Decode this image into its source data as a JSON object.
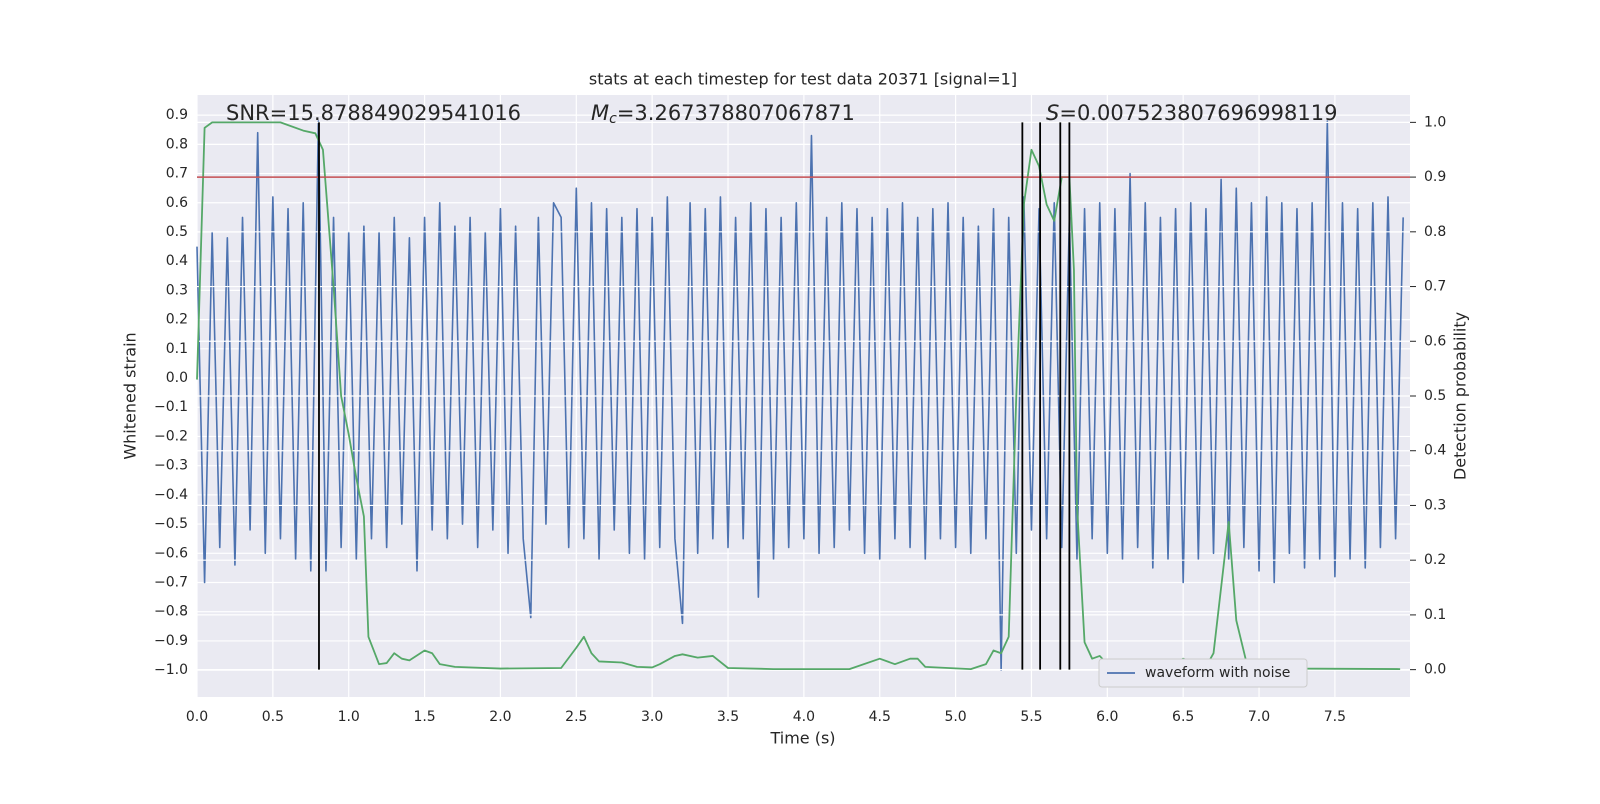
{
  "chart_data": {
    "type": "line",
    "title": "stats at each timestep for test data 20371 [signal=1]",
    "x_label": "Time (s)",
    "y_label": "Whitened strain",
    "y2_label": "Detection probability",
    "xlim": [
      0,
      7.995
    ],
    "ylim": [
      -1.092,
      0.969
    ],
    "y2lim": [
      -0.05,
      1.05
    ],
    "grid": true,
    "legend": "lower right",
    "xticks": [
      {
        "value": 0,
        "label": "0.0"
      },
      0.5,
      {
        "value": 1,
        "label": "1.0"
      },
      1.5,
      {
        "value": 2,
        "label": "2.0"
      },
      2.5,
      {
        "value": 3,
        "label": "3.0"
      },
      3.5,
      {
        "value": 4,
        "label": "4.0"
      },
      4.5,
      {
        "value": 5,
        "label": "5.0"
      },
      5.5,
      {
        "value": 6,
        "label": "6.0"
      },
      6.5,
      {
        "value": 7,
        "label": "7.0"
      },
      7.5
    ],
    "yticks": [
      {
        "value": -1,
        "label": "−1.0"
      },
      {
        "value": -0.9,
        "label": "−0.9"
      },
      {
        "value": -0.8,
        "label": "−0.8"
      },
      {
        "value": -0.7,
        "label": "−0.7"
      },
      {
        "value": -0.6,
        "label": "−0.6"
      },
      {
        "value": -0.5,
        "label": "−0.5"
      },
      {
        "value": -0.4,
        "label": "−0.4"
      },
      {
        "value": -0.3,
        "label": "−0.3"
      },
      {
        "value": -0.2,
        "label": "−0.2"
      },
      {
        "value": -0.1,
        "label": "−0.1"
      },
      {
        "value": 0,
        "label": "0.0"
      },
      0.1,
      0.2,
      0.3,
      0.4,
      0.5,
      0.6,
      0.7,
      0.8,
      0.9
    ],
    "y2ticks": [
      {
        "value": 0,
        "label": "0.0"
      },
      0.1,
      0.2,
      0.3,
      0.4,
      0.5,
      0.6,
      0.7,
      0.8,
      0.9,
      {
        "value": 1,
        "label": "1.0"
      }
    ],
    "annotations": [
      {
        "text": "SNR=15.878849029541016"
      },
      {
        "symbol": "M",
        "subscript": "c",
        "text": "=3.267378807067871"
      },
      {
        "symbol": "S",
        "text": "=0.007523807696998119"
      }
    ],
    "threshold": {
      "value": 0.9,
      "axis": "y2",
      "color": "#c44e52"
    },
    "vlines": {
      "x": [
        0.804,
        5.44,
        5.557,
        5.69,
        5.75
      ],
      "ymin": 0,
      "ymax": 1,
      "axis": "y2",
      "color": "#000000"
    },
    "series": [
      {
        "name": "waveform with noise",
        "color": "#4c72b0",
        "axis": "y",
        "x": [
          0,
          0.05,
          0.1,
          0.15,
          0.2,
          0.25,
          0.3,
          0.35,
          0.4,
          0.45,
          0.5,
          0.55,
          0.6,
          0.65,
          0.7,
          0.75,
          0.8,
          0.85,
          0.9,
          0.95,
          1,
          1.05,
          1.1,
          1.15,
          1.2,
          1.25,
          1.3,
          1.35,
          1.4,
          1.45,
          1.5,
          1.55,
          1.6,
          1.65,
          1.7,
          1.75,
          1.8,
          1.85,
          1.9,
          1.95,
          2,
          2.05,
          2.1,
          2.15,
          2.2,
          2.25,
          2.3,
          2.35,
          2.4,
          2.45,
          2.5,
          2.55,
          2.6,
          2.65,
          2.7,
          2.75,
          2.8,
          2.85,
          2.9,
          2.95,
          3,
          3.05,
          3.1,
          3.15,
          3.2,
          3.25,
          3.3,
          3.35,
          3.4,
          3.45,
          3.5,
          3.55,
          3.6,
          3.65,
          3.7,
          3.75,
          3.8,
          3.85,
          3.9,
          3.95,
          4,
          4.05,
          4.1,
          4.15,
          4.2,
          4.25,
          4.3,
          4.35,
          4.4,
          4.45,
          4.5,
          4.55,
          4.6,
          4.65,
          4.7,
          4.75,
          4.8,
          4.85,
          4.9,
          4.95,
          5,
          5.05,
          5.1,
          5.15,
          5.2,
          5.25,
          5.3,
          5.35,
          5.4,
          5.45,
          5.5,
          5.55,
          5.6,
          5.65,
          5.7,
          5.75,
          5.8,
          5.85,
          5.9,
          5.95,
          6,
          6.05,
          6.1,
          6.15,
          6.2,
          6.25,
          6.3,
          6.35,
          6.4,
          6.45,
          6.5,
          6.55,
          6.6,
          6.65,
          6.7,
          6.75,
          6.8,
          6.85,
          6.9,
          6.95,
          7,
          7.05,
          7.1,
          7.15,
          7.2,
          7.25,
          7.3,
          7.35,
          7.4,
          7.45,
          7.5,
          7.55,
          7.6,
          7.65,
          7.7,
          7.75,
          7.8,
          7.85,
          7.9,
          7.95
        ],
        "values": [
          0.45,
          -0.7,
          0.5,
          -0.58,
          0.48,
          -0.64,
          0.55,
          -0.52,
          0.84,
          -0.6,
          0.62,
          -0.55,
          0.58,
          -0.62,
          0.6,
          -0.66,
          0.88,
          -0.66,
          0.55,
          -0.58,
          0.5,
          -0.62,
          0.52,
          -0.55,
          0.5,
          -0.58,
          0.55,
          -0.5,
          0.48,
          -0.66,
          0.55,
          -0.52,
          0.6,
          -0.55,
          0.52,
          -0.5,
          0.55,
          -0.58,
          0.5,
          -0.52,
          0.58,
          -0.6,
          0.52,
          -0.55,
          -0.82,
          0.55,
          -0.5,
          0.6,
          0.55,
          -0.58,
          0.65,
          -0.55,
          0.6,
          -0.62,
          0.58,
          -0.52,
          0.55,
          -0.6,
          0.58,
          -0.62,
          0.55,
          -0.58,
          0.62,
          -0.55,
          -0.84,
          0.6,
          -0.6,
          0.58,
          -0.55,
          0.62,
          -0.58,
          0.55,
          -0.55,
          0.6,
          -0.75,
          0.58,
          -0.62,
          0.55,
          -0.58,
          0.6,
          -0.55,
          0.83,
          -0.6,
          0.55,
          -0.58,
          0.6,
          -0.52,
          0.58,
          -0.6,
          0.55,
          -0.62,
          0.58,
          -0.55,
          0.6,
          -0.58,
          0.55,
          -0.62,
          0.58,
          -0.55,
          0.6,
          -0.58,
          0.55,
          -0.6,
          0.52,
          -0.55,
          0.58,
          -1.0,
          0.55,
          -0.6,
          0.62,
          -0.52,
          0.58,
          -0.55,
          0.6,
          -0.58,
          0.55,
          -0.62,
          0.58,
          -0.55,
          0.6,
          -0.6,
          0.58,
          -0.62,
          0.7,
          -0.58,
          0.6,
          -0.65,
          0.55,
          -0.62,
          0.58,
          -0.7,
          0.6,
          -0.62,
          0.58,
          -0.6,
          0.68,
          -0.62,
          0.65,
          -0.58,
          0.6,
          -0.66,
          0.62,
          -0.7,
          0.6,
          -0.6,
          0.58,
          -0.65,
          0.6,
          -0.62,
          0.88,
          -0.68,
          0.6,
          -0.62,
          0.58,
          -0.65,
          0.6,
          -0.58,
          0.62,
          -0.55,
          0.55
        ]
      },
      {
        "color": "#55a868",
        "axis": "y2",
        "x": [
          0,
          0.05,
          0.1,
          0.3,
          0.55,
          0.7,
          0.78,
          0.83,
          0.9,
          0.95,
          1,
          1.05,
          1.1,
          1.13,
          1.2,
          1.25,
          1.3,
          1.35,
          1.4,
          1.5,
          1.55,
          1.6,
          1.7,
          2,
          2.4,
          2.5,
          2.55,
          2.6,
          2.65,
          2.8,
          2.9,
          3,
          3.05,
          3.15,
          3.2,
          3.3,
          3.4,
          3.5,
          3.8,
          4.3,
          4.5,
          4.6,
          4.7,
          4.75,
          4.8,
          5.1,
          5.2,
          5.25,
          5.3,
          5.35,
          5.4,
          5.45,
          5.5,
          5.55,
          5.6,
          5.65,
          5.7,
          5.75,
          5.78,
          5.8,
          5.85,
          5.9,
          5.95,
          6,
          6.1,
          6.4,
          6.5,
          6.6,
          6.65,
          6.7,
          6.8,
          6.85,
          6.92,
          7,
          7.05,
          7.2,
          7.93
        ],
        "values": [
          0.53,
          0.99,
          1.0,
          1.0,
          1.0,
          0.985,
          0.98,
          0.95,
          0.7,
          0.5,
          0.43,
          0.35,
          0.28,
          0.06,
          0.01,
          0.012,
          0.03,
          0.02,
          0.017,
          0.035,
          0.03,
          0.01,
          0.005,
          0.002,
          0.003,
          0.04,
          0.06,
          0.03,
          0.015,
          0.013,
          0.005,
          0.004,
          0.01,
          0.025,
          0.028,
          0.022,
          0.025,
          0.003,
          0.001,
          0.001,
          0.02,
          0.01,
          0.02,
          0.02,
          0.005,
          0.001,
          0.01,
          0.035,
          0.03,
          0.06,
          0.5,
          0.85,
          0.95,
          0.92,
          0.85,
          0.82,
          0.9,
          0.9,
          0.73,
          0.3,
          0.05,
          0.02,
          0.025,
          0.01,
          0.002,
          0.003,
          0.02,
          0.01,
          0.005,
          0.03,
          0.27,
          0.09,
          0.01,
          0.005,
          0.008,
          0.002,
          0.001
        ]
      }
    ]
  }
}
